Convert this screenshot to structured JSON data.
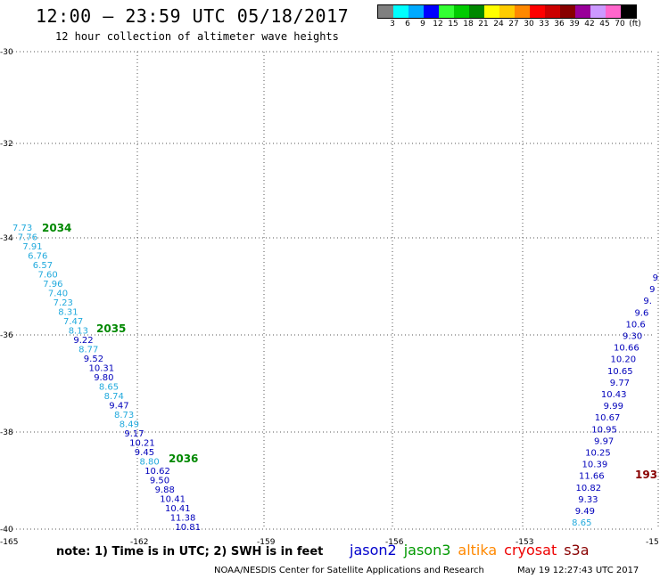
{
  "header": {
    "title": "12:00 – 23:59 UTC 05/18/2017",
    "subtitle": "12 hour collection of altimeter wave heights"
  },
  "colorbar": {
    "colors": [
      "#808080",
      "#00ffff",
      "#00aaff",
      "#0000ff",
      "#33ff33",
      "#00cc00",
      "#008800",
      "#ffff00",
      "#ffcc00",
      "#ff8800",
      "#ff0000",
      "#cc0000",
      "#880000",
      "#990099",
      "#cc99ff",
      "#ff66cc",
      "#000000"
    ],
    "labels": [
      "3",
      "6",
      "9",
      "12",
      "15",
      "18",
      "21",
      "24",
      "27",
      "30",
      "33",
      "36",
      "39",
      "42",
      "45",
      "70",
      "(ft)"
    ]
  },
  "axes": {
    "lon_ticks": [
      "-165",
      "-162",
      "-159",
      "-156",
      "-153",
      "-15"
    ],
    "lat_ticks": [
      "-30",
      "-32",
      "-34",
      "-36",
      "-38",
      "-40"
    ]
  },
  "tracks": {
    "colors": {
      "light_blue": "#22aadd",
      "dark_blue": "#0000bb",
      "green": "#008800",
      "dark_red": "#880000"
    },
    "west_track": [
      {
        "v": "7.73",
        "c": "light_blue"
      },
      {
        "v": "7.76",
        "c": "light_blue"
      },
      {
        "v": "7.91",
        "c": "light_blue"
      },
      {
        "v": "6.76",
        "c": "light_blue"
      },
      {
        "v": "6.57",
        "c": "light_blue"
      },
      {
        "v": "7.60",
        "c": "light_blue"
      },
      {
        "v": "7.96",
        "c": "light_blue"
      },
      {
        "v": "7.40",
        "c": "light_blue"
      },
      {
        "v": "7.23",
        "c": "light_blue"
      },
      {
        "v": "8.31",
        "c": "light_blue"
      },
      {
        "v": "7.47",
        "c": "light_blue"
      },
      {
        "v": "8.13",
        "c": "light_blue"
      },
      {
        "v": "9.22",
        "c": "dark_blue"
      },
      {
        "v": "8.77",
        "c": "light_blue"
      },
      {
        "v": "9.52",
        "c": "dark_blue"
      },
      {
        "v": "10.31",
        "c": "dark_blue"
      },
      {
        "v": "9.80",
        "c": "dark_blue"
      },
      {
        "v": "8.65",
        "c": "light_blue"
      },
      {
        "v": "8.74",
        "c": "light_blue"
      },
      {
        "v": "9.47",
        "c": "dark_blue"
      },
      {
        "v": "8.73",
        "c": "light_blue"
      },
      {
        "v": "8.49",
        "c": "light_blue"
      },
      {
        "v": "9.17",
        "c": "dark_blue"
      },
      {
        "v": "10.21",
        "c": "dark_blue"
      },
      {
        "v": "9.45",
        "c": "dark_blue"
      },
      {
        "v": "8.80",
        "c": "light_blue"
      },
      {
        "v": "10.62",
        "c": "dark_blue"
      },
      {
        "v": "9.50",
        "c": "dark_blue"
      },
      {
        "v": "9.88",
        "c": "dark_blue"
      },
      {
        "v": "10.41",
        "c": "dark_blue"
      },
      {
        "v": "10.41",
        "c": "dark_blue"
      },
      {
        "v": "11.38",
        "c": "dark_blue"
      },
      {
        "v": "10.81",
        "c": "dark_blue"
      }
    ],
    "west_hour_labels": [
      "2034",
      "2035",
      "2036"
    ],
    "east_track": [
      {
        "v": "9",
        "c": "dark_blue"
      },
      {
        "v": "9",
        "c": "dark_blue"
      },
      {
        "v": "9.",
        "c": "dark_blue"
      },
      {
        "v": "9.6",
        "c": "dark_blue"
      },
      {
        "v": "10.6",
        "c": "dark_blue"
      },
      {
        "v": "9.30",
        "c": "dark_blue"
      },
      {
        "v": "10.66",
        "c": "dark_blue"
      },
      {
        "v": "10.20",
        "c": "dark_blue"
      },
      {
        "v": "10.65",
        "c": "dark_blue"
      },
      {
        "v": "9.77",
        "c": "dark_blue"
      },
      {
        "v": "10.43",
        "c": "dark_blue"
      },
      {
        "v": "9.99",
        "c": "dark_blue"
      },
      {
        "v": "10.67",
        "c": "dark_blue"
      },
      {
        "v": "10.95",
        "c": "dark_blue"
      },
      {
        "v": "9.97",
        "c": "dark_blue"
      },
      {
        "v": "10.25",
        "c": "dark_blue"
      },
      {
        "v": "10.39",
        "c": "dark_blue"
      },
      {
        "v": "11.66",
        "c": "dark_blue"
      },
      {
        "v": "10.82",
        "c": "dark_blue"
      },
      {
        "v": "9.33",
        "c": "dark_blue"
      },
      {
        "v": "9.49",
        "c": "dark_blue"
      },
      {
        "v": "8.65",
        "c": "light_blue"
      }
    ],
    "east_hour_label": "193"
  },
  "footer": {
    "note": "note:  1) Time is in UTC; 2) SWH is in feet",
    "satellites": [
      {
        "name": "jason2",
        "color": "#0000cc"
      },
      {
        "name": "jason3",
        "color": "#009900"
      },
      {
        "name": "altika",
        "color": "#ff8800"
      },
      {
        "name": "cryosat",
        "color": "#ee0000"
      },
      {
        "name": "s3a",
        "color": "#880000"
      }
    ],
    "credit": "NOAA/NESDIS Center for Satellite Applications and Research",
    "timestamp": "May 19 12:27:43 UTC 2017"
  }
}
